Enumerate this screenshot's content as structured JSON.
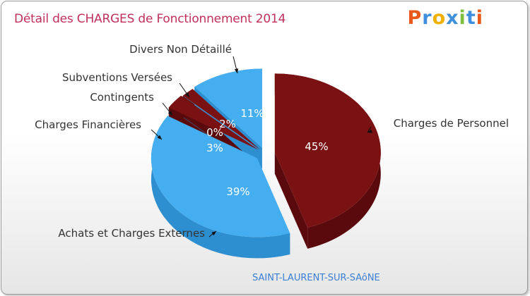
{
  "title": "Détail des CHARGES de Fonctionnement 2014",
  "logo": {
    "letters": [
      "P",
      "r",
      "o",
      "x",
      "i",
      "t",
      "i"
    ]
  },
  "commune": "SAINT-LAURENT-SUR-SAôNE",
  "colors": {
    "red_top": "#7a1214",
    "red_side": "#5a0a0c",
    "blue_top": "#45aef0",
    "blue_side": "#2e8fd0",
    "title": "#c0305a"
  },
  "chart_data": {
    "type": "pie",
    "title": "Détail des CHARGES de Fonctionnement 2014",
    "slices": [
      {
        "label": "Charges de Personnel",
        "value": 45,
        "pct_label": "45%",
        "color": "red"
      },
      {
        "label": "Achats et Charges Externes",
        "value": 39,
        "pct_label": "39%",
        "color": "blue"
      },
      {
        "label": "Charges Financières",
        "value": 3,
        "pct_label": "3%",
        "color": "red"
      },
      {
        "label": "Contingents",
        "value": 0,
        "pct_label": "0%",
        "color": "blue"
      },
      {
        "label": "Subventions Versées",
        "value": 2,
        "pct_label": "2%",
        "color": "red"
      },
      {
        "label": "Divers Non Détaillé",
        "value": 11,
        "pct_label": "11%",
        "color": "blue"
      }
    ]
  }
}
